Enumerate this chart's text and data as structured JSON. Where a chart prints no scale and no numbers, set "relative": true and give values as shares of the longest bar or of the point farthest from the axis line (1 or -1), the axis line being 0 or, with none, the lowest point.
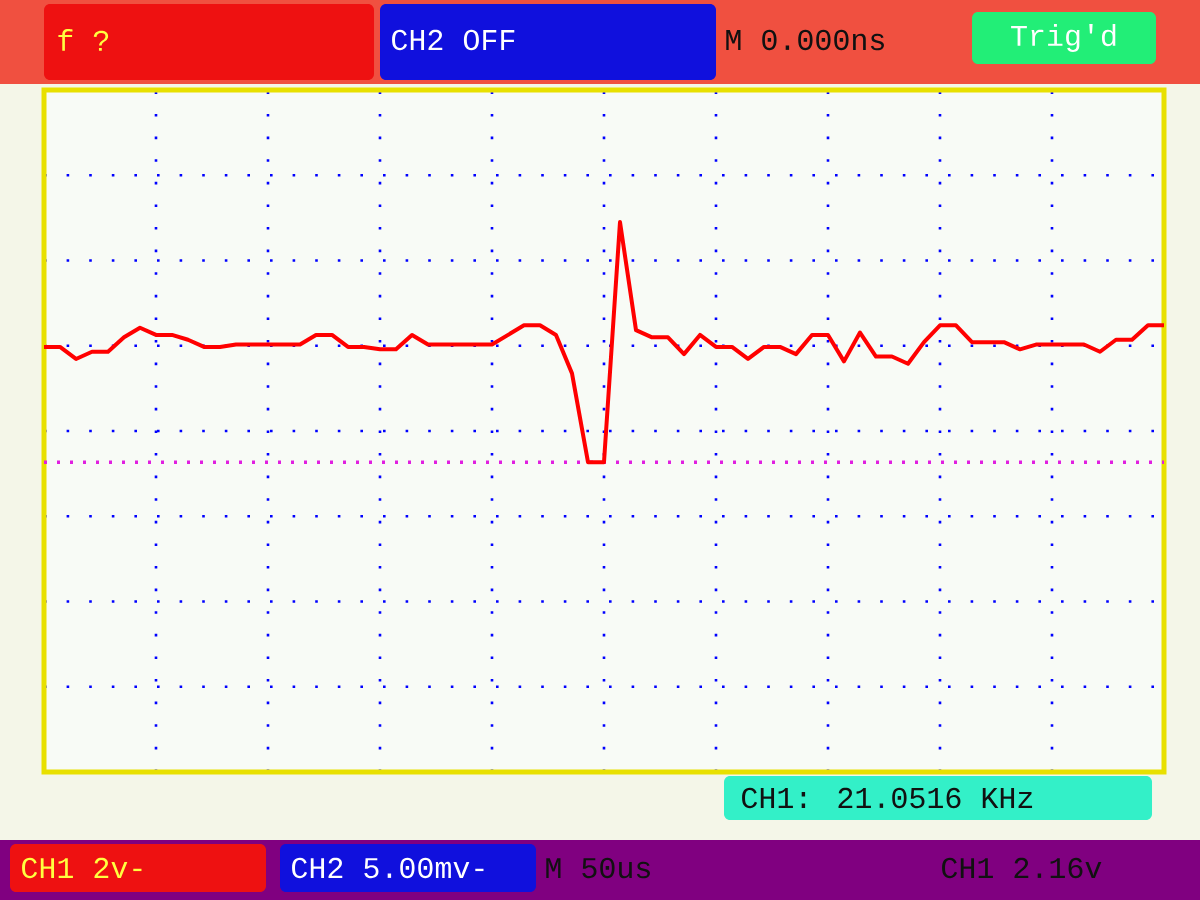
{
  "chart_data": {
    "type": "line",
    "relative": true,
    "grid": true,
    "categories": [
      null,
      null,
      null,
      null,
      null,
      null,
      null,
      null,
      null,
      null,
      null,
      null,
      null,
      null,
      null,
      null,
      null,
      null,
      null,
      null,
      null,
      null,
      null,
      null,
      null,
      null,
      null,
      null,
      null,
      null,
      null,
      null,
      null,
      null,
      null,
      null,
      null,
      null,
      null,
      null,
      null,
      null,
      null,
      null,
      null,
      null,
      null,
      null,
      null,
      null,
      null,
      null,
      null,
      null,
      null,
      null,
      null,
      null,
      null,
      null,
      null,
      null,
      null,
      null,
      null,
      null,
      null,
      null,
      null,
      null,
      null
    ],
    "series": [
      {
        "color": "#ff0000",
        "values": [
          0.48,
          0.48,
          0.43,
          0.46,
          0.46,
          0.52,
          0.56,
          0.53,
          0.53,
          0.51,
          0.48,
          0.48,
          0.49,
          0.49,
          0.49,
          0.49,
          0.49,
          0.53,
          0.53,
          0.48,
          0.48,
          0.47,
          0.47,
          0.53,
          0.49,
          0.49,
          0.49,
          0.49,
          0.49,
          0.53,
          0.57,
          0.57,
          0.53,
          0.37,
          0,
          0,
          1,
          0.55,
          0.52,
          0.52,
          0.45,
          0.53,
          0.48,
          0.48,
          0.43,
          0.48,
          0.48,
          0.45,
          0.53,
          0.53,
          0.42,
          0.54,
          0.44,
          0.44,
          0.41,
          0.5,
          0.57,
          0.57,
          0.5,
          0.5,
          0.5,
          0.47,
          0.49,
          0.49,
          0.49,
          0.49,
          0.46,
          0.51,
          0.51,
          0.57,
          0.57
        ]
      }
    ],
    "ref_lines": [
      {
        "axis": "y",
        "value": 0,
        "color": "#e020e0",
        "line_style": "dotted"
      }
    ],
    "annotations": [
      "f  ?",
      "CH2 OFF",
      "M 0.000ns",
      "Trig'd",
      "CH1: 21.0516 KHz",
      "CH1 2v-",
      "CH2 5.00mv-",
      "M 50us",
      "CH1 2.16v"
    ]
  }
}
